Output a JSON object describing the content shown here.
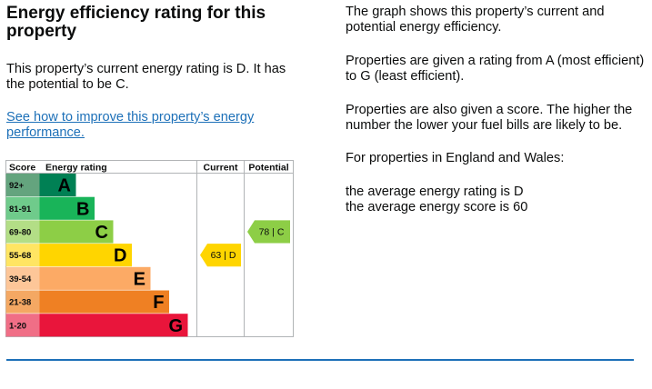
{
  "heading": "Energy efficiency rating for this property",
  "lead": "This property’s current energy rating is D. It has the potential to be C.",
  "improve_link": "See how to improve this property’s energy performance.",
  "explanation": {
    "p1": "The graph shows this property’s current and potential energy efficiency.",
    "p2": "Properties are given a rating from A (most efficient) to G (least efficient).",
    "p3": "Properties are also given a score. The higher the number the lower your fuel bills are likely to be.",
    "p4": "For properties in England and Wales:",
    "avg_rating": "the average energy rating is D",
    "avg_score": "the average energy score is 60"
  },
  "chart_data": {
    "type": "table",
    "headers": {
      "score": "Score",
      "rating": "Energy rating",
      "current": "Current",
      "potential": "Potential"
    },
    "bands": [
      {
        "score": "92+",
        "letter": "A",
        "color": "#008054",
        "score_bg": "#64a47e",
        "letter_color": "#000000"
      },
      {
        "score": "81-91",
        "letter": "B",
        "color": "#19b459",
        "score_bg": "#6fcb8b",
        "letter_color": "#000000"
      },
      {
        "score": "69-80",
        "letter": "C",
        "color": "#8dce46",
        "score_bg": "#b3de86",
        "letter_color": "#000000"
      },
      {
        "score": "55-68",
        "letter": "D",
        "color": "#ffd500",
        "score_bg": "#ffe563",
        "letter_color": "#000000"
      },
      {
        "score": "39-54",
        "letter": "E",
        "color": "#fcaa65",
        "score_bg": "#fdc698",
        "letter_color": "#000000"
      },
      {
        "score": "21-38",
        "letter": "F",
        "color": "#ef8023",
        "score_bg": "#f4a863",
        "letter_color": "#000000"
      },
      {
        "score": "1-20",
        "letter": "G",
        "color": "#e9153b",
        "score_bg": "#f06e86",
        "letter_color": "#000000"
      }
    ],
    "current": {
      "score": 63,
      "letter": "D",
      "label": "63 |  D",
      "color": "#ffd500"
    },
    "potential": {
      "score": 78,
      "letter": "C",
      "label": "78 |  C",
      "color": "#8dce46"
    }
  }
}
